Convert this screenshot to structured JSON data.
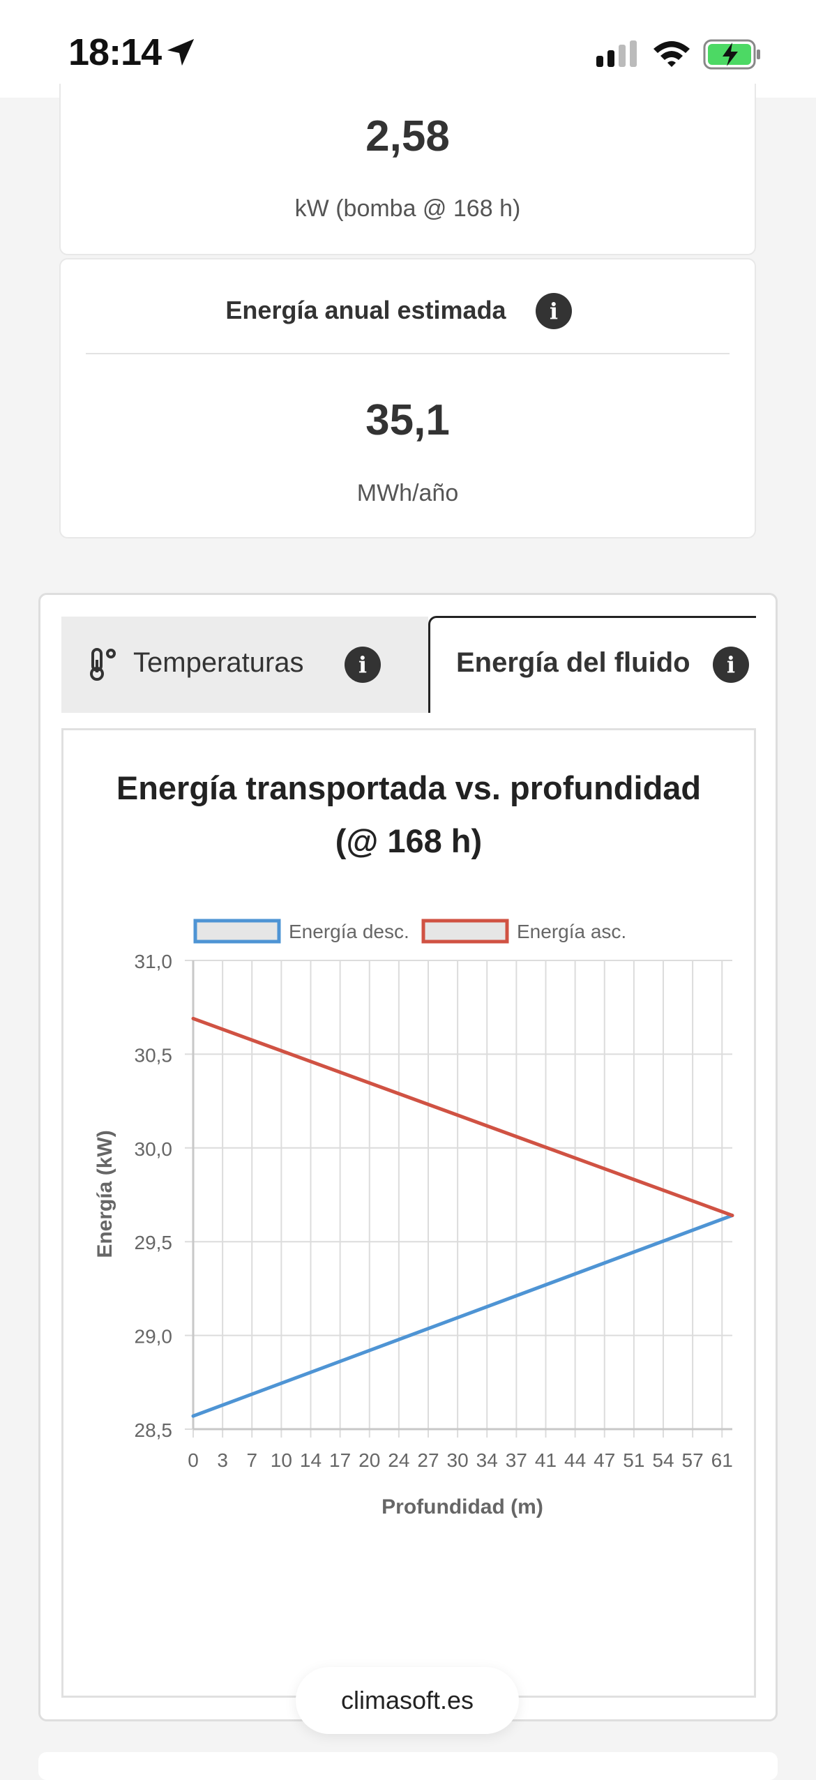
{
  "status_bar": {
    "time": "18:14"
  },
  "summary": {
    "power_value": "2,58",
    "power_unit": "kW (bomba @ 168 h)",
    "energy_title": "Energía anual estimada",
    "energy_value": "35,1",
    "energy_unit": "MWh/año"
  },
  "tabs": [
    {
      "label": "Temperaturas",
      "active": false
    },
    {
      "label": "Energía del fluido",
      "active": true
    }
  ],
  "footer": {
    "label": "climasoft.es"
  },
  "chart_data": {
    "type": "line",
    "title_line1": "Energía transportada vs. profundidad",
    "title_line2": "(@ 168 h)",
    "xlabel": "Profundidad (m)",
    "ylabel": "Energía (kW)",
    "categories": [
      "0",
      "3",
      "7",
      "10",
      "14",
      "17",
      "20",
      "24",
      "27",
      "30",
      "34",
      "37",
      "41",
      "44",
      "47",
      "51",
      "54",
      "57",
      "61"
    ],
    "x_extent": [
      0,
      62.5
    ],
    "ylim": [
      28.5,
      31.0
    ],
    "yticks": [
      "31,0",
      "30,5",
      "30,0",
      "29,5",
      "29,0",
      "28,5"
    ],
    "ytick_values": [
      31.0,
      30.5,
      30.0,
      29.5,
      29.0,
      28.5
    ],
    "grid": true,
    "legend_position": "top",
    "series": [
      {
        "name": "Energía desc.",
        "color": "#4e94d4",
        "x": [
          0,
          62.5
        ],
        "y": [
          28.57,
          29.64
        ]
      },
      {
        "name": "Energía asc.",
        "color": "#d05243",
        "x": [
          0,
          62.5
        ],
        "y": [
          30.69,
          29.64
        ]
      }
    ]
  },
  "colors": {
    "series_blue": "#4e94d4",
    "series_red": "#d05243",
    "legend_fill": "#e6e6e6"
  }
}
